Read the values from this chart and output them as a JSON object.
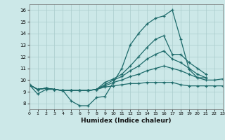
{
  "xlabel": "Humidex (Indice chaleur)",
  "xlim": [
    0,
    23
  ],
  "ylim": [
    7.5,
    16.5
  ],
  "xticks": [
    0,
    1,
    2,
    3,
    4,
    5,
    6,
    7,
    8,
    9,
    10,
    11,
    12,
    13,
    14,
    15,
    16,
    17,
    18,
    19,
    20,
    21,
    22,
    23
  ],
  "yticks": [
    8,
    9,
    10,
    11,
    12,
    13,
    14,
    15,
    16
  ],
  "background_color": "#cce8e8",
  "line_color": "#1e6b6b",
  "grid_color": "#aacccc",
  "lines": [
    {
      "x": [
        0,
        1,
        2,
        3,
        4,
        5,
        6,
        7,
        8,
        9,
        10,
        11,
        12,
        13,
        14,
        15,
        16,
        17,
        18,
        19,
        20,
        21
      ],
      "y": [
        9.6,
        8.8,
        9.2,
        9.2,
        9.1,
        8.2,
        7.8,
        7.8,
        8.5,
        8.6,
        9.8,
        11.0,
        13.0,
        14.0,
        14.8,
        15.3,
        15.5,
        16.0,
        13.5,
        10.9,
        10.2,
        10.2
      ]
    },
    {
      "x": [
        0,
        1,
        2,
        3,
        4,
        5,
        6,
        7,
        8,
        9,
        10,
        11,
        12,
        13,
        14,
        15,
        16,
        17,
        18,
        19,
        20,
        21
      ],
      "y": [
        9.6,
        9.2,
        9.3,
        9.2,
        9.1,
        9.1,
        9.1,
        9.1,
        9.2,
        9.8,
        10.1,
        10.5,
        11.2,
        12.0,
        12.8,
        13.5,
        13.8,
        12.2,
        12.2,
        11.5,
        11.0,
        10.5
      ]
    },
    {
      "x": [
        0,
        1,
        2,
        3,
        4,
        5,
        6,
        7,
        8,
        9,
        10,
        11,
        12,
        13,
        14,
        15,
        16,
        17,
        18,
        19,
        20,
        21
      ],
      "y": [
        9.6,
        9.2,
        9.3,
        9.2,
        9.1,
        9.1,
        9.1,
        9.1,
        9.2,
        9.6,
        10.0,
        10.3,
        10.8,
        11.2,
        11.8,
        12.2,
        12.5,
        11.8,
        11.5,
        11.0,
        10.5,
        10.2
      ]
    },
    {
      "x": [
        0,
        1,
        2,
        3,
        4,
        5,
        6,
        7,
        8,
        9,
        10,
        11,
        12,
        13,
        14,
        15,
        16,
        17,
        18,
        19,
        20,
        21,
        22,
        23
      ],
      "y": [
        9.6,
        9.2,
        9.3,
        9.2,
        9.1,
        9.1,
        9.1,
        9.1,
        9.2,
        9.5,
        9.8,
        10.0,
        10.3,
        10.5,
        10.8,
        11.0,
        11.2,
        11.0,
        10.8,
        10.5,
        10.2,
        10.0,
        10.0,
        10.1
      ]
    },
    {
      "x": [
        0,
        1,
        2,
        3,
        4,
        5,
        6,
        7,
        8,
        9,
        10,
        11,
        12,
        13,
        14,
        15,
        16,
        17,
        18,
        19,
        20,
        21,
        22,
        23
      ],
      "y": [
        9.6,
        9.2,
        9.3,
        9.2,
        9.1,
        9.1,
        9.1,
        9.1,
        9.2,
        9.4,
        9.5,
        9.6,
        9.7,
        9.7,
        9.8,
        9.8,
        9.8,
        9.8,
        9.6,
        9.5,
        9.5,
        9.5,
        9.5,
        9.5
      ]
    }
  ]
}
